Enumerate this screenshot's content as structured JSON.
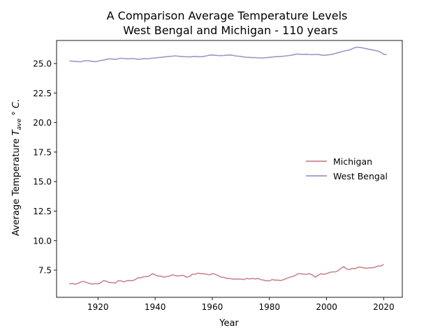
{
  "chart_data": {
    "type": "line",
    "title": "A Comparison Average Temperature Levels",
    "subtitle": "West Bengal and Michigan - 110 years",
    "xlabel": "Year",
    "ylabel_prefix": "Average Temperature ",
    "ylabel_symbol": "T",
    "ylabel_subscript": "ave",
    "ylabel_suffix": " ° C.",
    "xlim": [
      1905.5,
      2026.5
    ],
    "ylim": [
      5.2,
      26.95
    ],
    "x_ticks": [
      1920,
      1940,
      1960,
      1980,
      2000,
      2020
    ],
    "x_tick_labels": [
      "1920",
      "1940",
      "1960",
      "1980",
      "2000",
      "2020"
    ],
    "y_ticks": [
      7.5,
      10.0,
      12.5,
      15.0,
      17.5,
      20.0,
      22.5,
      25.0
    ],
    "y_tick_labels": [
      "7.5",
      "10.0",
      "12.5",
      "15.0",
      "17.5",
      "20.0",
      "22.5",
      "25.0"
    ],
    "grid": false,
    "legend_position": "center-right",
    "x_start": 1910,
    "series": [
      {
        "name": "Michigan",
        "color": "#c9868c",
        "values": [
          6.33,
          6.38,
          6.3,
          6.38,
          6.5,
          6.55,
          6.45,
          6.38,
          6.32,
          6.37,
          6.33,
          6.45,
          6.62,
          6.55,
          6.45,
          6.45,
          6.4,
          6.6,
          6.6,
          6.5,
          6.6,
          6.62,
          6.6,
          6.7,
          6.85,
          6.85,
          6.95,
          6.95,
          7.0,
          7.2,
          7.1,
          7.0,
          7.0,
          6.9,
          6.95,
          7.0,
          7.1,
          7.05,
          7.0,
          7.05,
          7.05,
          6.9,
          6.95,
          7.15,
          7.15,
          7.25,
          7.2,
          7.2,
          7.15,
          7.1,
          7.2,
          7.15,
          7.05,
          6.9,
          6.9,
          6.8,
          6.8,
          6.75,
          6.75,
          6.75,
          6.75,
          6.7,
          6.8,
          6.75,
          6.8,
          6.75,
          6.8,
          6.7,
          6.65,
          6.6,
          6.6,
          6.7,
          6.65,
          6.65,
          6.62,
          6.7,
          6.8,
          6.9,
          6.95,
          7.05,
          7.2,
          7.2,
          7.15,
          7.15,
          7.2,
          7.1,
          6.9,
          7.05,
          7.2,
          7.15,
          7.2,
          7.3,
          7.35,
          7.35,
          7.45,
          7.65,
          7.8,
          7.6,
          7.55,
          7.65,
          7.62,
          7.75,
          7.75,
          7.7,
          7.65,
          7.7,
          7.7,
          7.75,
          7.85,
          7.85,
          8.0
        ]
      },
      {
        "name": "West Bengal",
        "color": "#9b97cb",
        "values": [
          25.22,
          25.2,
          25.18,
          25.16,
          25.15,
          25.22,
          25.25,
          25.22,
          25.18,
          25.15,
          25.2,
          25.25,
          25.3,
          25.35,
          25.4,
          25.38,
          25.35,
          25.4,
          25.45,
          25.42,
          25.4,
          25.4,
          25.42,
          25.4,
          25.35,
          25.38,
          25.4,
          25.4,
          25.42,
          25.45,
          25.48,
          25.5,
          25.52,
          25.55,
          25.58,
          25.6,
          25.62,
          25.65,
          25.62,
          25.6,
          25.58,
          25.57,
          25.56,
          25.58,
          25.6,
          25.58,
          25.57,
          25.6,
          25.65,
          25.7,
          25.72,
          25.7,
          25.68,
          25.67,
          25.68,
          25.7,
          25.72,
          25.7,
          25.65,
          25.62,
          25.6,
          25.55,
          25.53,
          25.52,
          25.5,
          25.5,
          25.48,
          25.47,
          25.48,
          25.5,
          25.52,
          25.55,
          25.58,
          25.58,
          25.6,
          25.62,
          25.65,
          25.68,
          25.72,
          25.78,
          25.8,
          25.78,
          25.77,
          25.78,
          25.76,
          25.75,
          25.76,
          25.77,
          25.72,
          25.7,
          25.72,
          25.74,
          25.78,
          25.85,
          25.92,
          25.98,
          26.05,
          26.1,
          26.15,
          26.25,
          26.35,
          26.38,
          26.35,
          26.3,
          26.25,
          26.2,
          26.15,
          26.1,
          26.05,
          25.95,
          25.78,
          25.75
        ]
      }
    ]
  }
}
